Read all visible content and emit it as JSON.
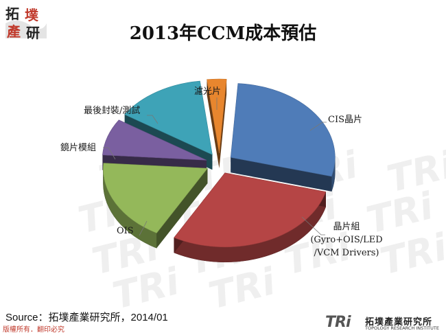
{
  "logo": {
    "chars": [
      "拓",
      "墣",
      "產",
      "研"
    ]
  },
  "footer": {
    "source": "Source：拓墣產業研究所，2014/01",
    "copyright": "版權所有．翻印必究",
    "logo_mark": "TRi",
    "logo_cn": "拓墣產業研究所",
    "logo_en": "TOPOLOGY RESEARCH INSTITUTE",
    "watermark": "TRi"
  },
  "colors": {
    "cis": "#4f7cb8",
    "module": "#b54545",
    "ois": "#94b85a",
    "lens": "#7a5fa0",
    "packaging": "#3ea3b7",
    "filter": "#e8862e"
  },
  "chart_data": {
    "type": "pie",
    "title": "2013年CCM成本預估",
    "style": "3d-exploded",
    "slices": [
      {
        "key": "cis",
        "label": "CIS晶片",
        "value": 28
      },
      {
        "key": "module",
        "label": "晶片組",
        "label_line2": "(Gyro+OIS/LED",
        "label_line3": "/VCM Drivers)",
        "value": 29
      },
      {
        "key": "ois",
        "label": "OIS",
        "value": 18
      },
      {
        "key": "lens",
        "label": "鏡片模組",
        "value": 8
      },
      {
        "key": "packaging",
        "label": "最後封裝/測試",
        "value": 14
      },
      {
        "key": "filter",
        "label": "濾光片",
        "value": 3
      }
    ]
  }
}
